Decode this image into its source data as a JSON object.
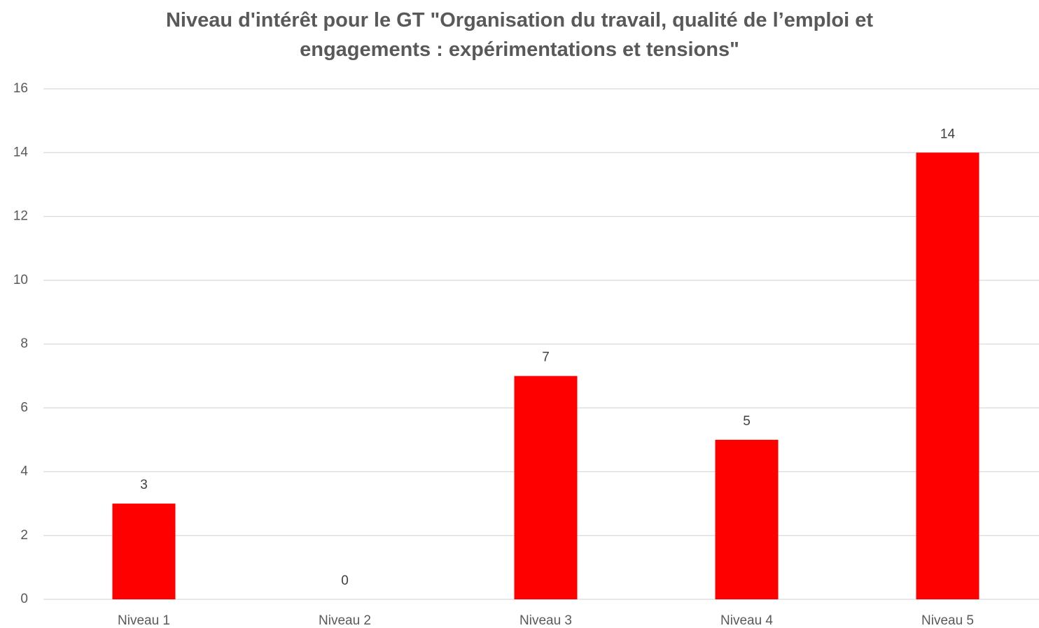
{
  "chart_data": {
    "type": "bar",
    "title": "Niveau d'intérêt pour le GT \"Organisation du travail, qualité de l’emploi et engagements : expérimentations et tensions\"",
    "categories": [
      "Niveau 1",
      "Niveau 2",
      "Niveau 3",
      "Niveau 4",
      "Niveau 5"
    ],
    "values": [
      3,
      0,
      7,
      5,
      14
    ],
    "color": "#ff0000",
    "ylim": [
      0,
      16
    ],
    "yticks": [
      0,
      2,
      4,
      6,
      8,
      10,
      12,
      14,
      16
    ],
    "grid": true
  }
}
